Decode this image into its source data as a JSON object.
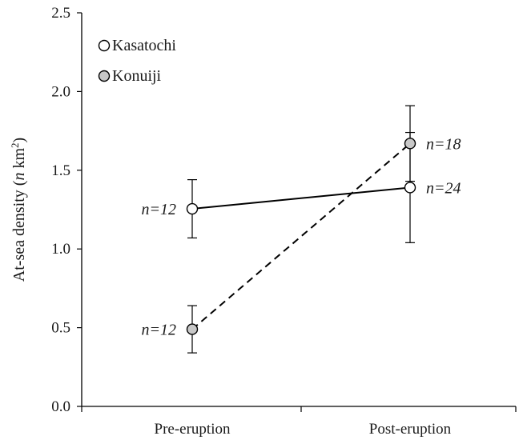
{
  "chart_data": {
    "type": "line",
    "title": "",
    "xlabel": "",
    "ylabel": {
      "prefix": "At-sea density (",
      "italic": "n",
      "unit": " km",
      "superscript": "2",
      "suffix": ")"
    },
    "categories": [
      "Pre-eruption",
      "Post-eruption"
    ],
    "ylim": [
      0,
      2.5
    ],
    "yticks": [
      "0.0",
      "0.5",
      "1.0",
      "1.5",
      "2.0",
      "2.5"
    ],
    "grid": false,
    "legend_position": "top-left",
    "series": [
      {
        "name": "Kasatochi",
        "values": [
          1.255,
          1.39
        ],
        "error": [
          [
            1.07,
            1.44
          ],
          [
            1.04,
            1.74
          ]
        ],
        "n_labels": [
          "n=12",
          "n=24"
        ],
        "line_style": "solid",
        "marker_fill": "#ffffff"
      },
      {
        "name": "Konuiji",
        "values": [
          0.49,
          1.67
        ],
        "error": [
          [
            0.34,
            0.64
          ],
          [
            1.43,
            1.91
          ]
        ],
        "n_labels": [
          "n=12",
          "n=18"
        ],
        "line_style": "dashed",
        "marker_fill": "#c8c8c8"
      }
    ]
  }
}
